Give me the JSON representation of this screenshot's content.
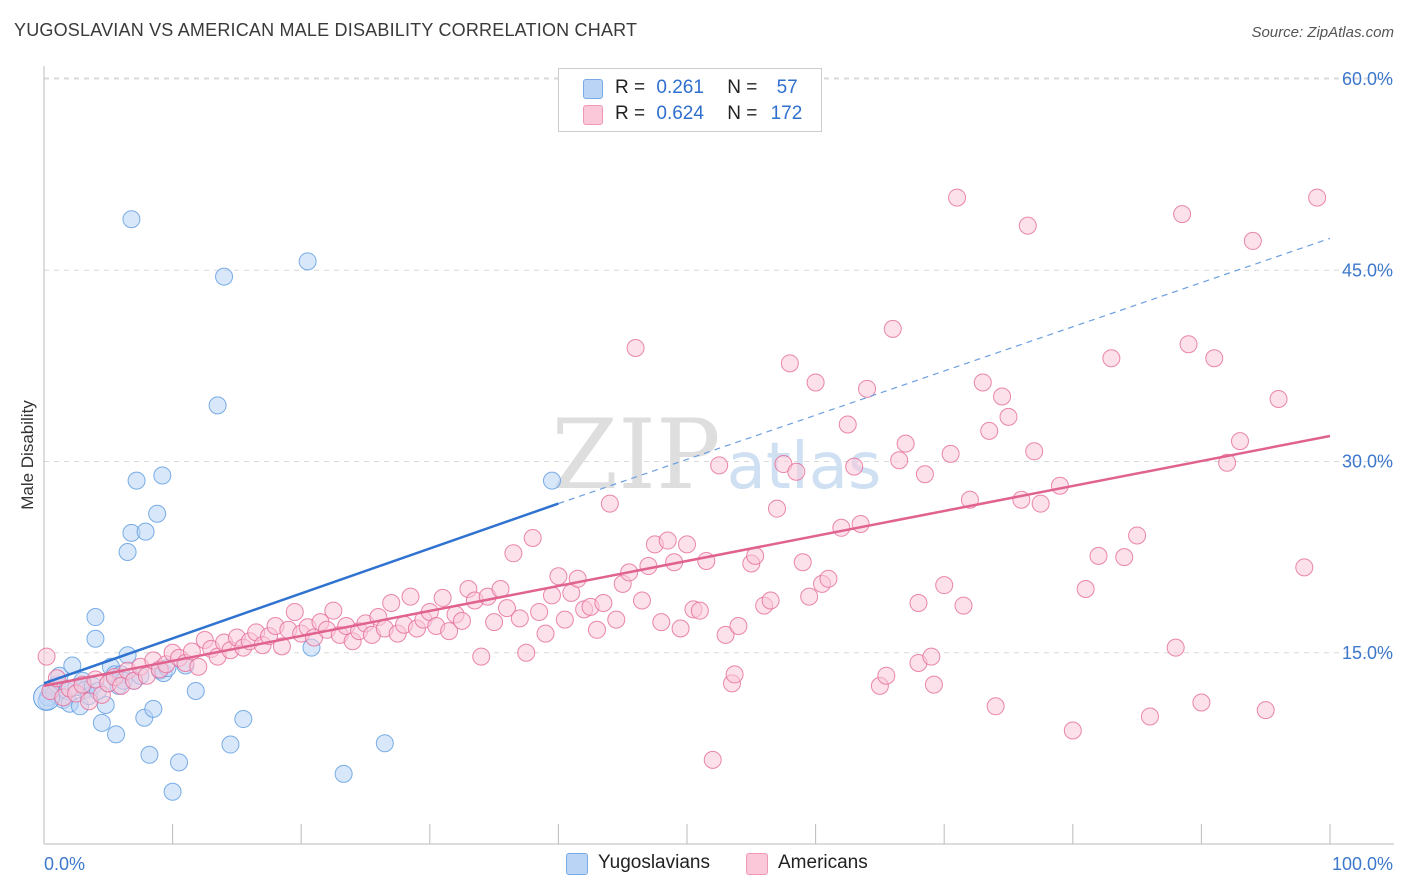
{
  "title": "YUGOSLAVIAN VS AMERICAN MALE DISABILITY CORRELATION CHART",
  "source": "Source: ZipAtlas.com",
  "watermark": {
    "zip": "ZIP",
    "atlas": "atlas"
  },
  "legend": {
    "rows": [
      {
        "r_label": "R =",
        "r_value": "0.261",
        "n_label": "N =",
        "n_value": "57",
        "color": "#a9c9f2"
      },
      {
        "r_label": "R =",
        "r_value": "0.624",
        "n_label": "N =",
        "n_value": "172",
        "color": "#f7b8cd"
      }
    ]
  },
  "bottom_legend": [
    {
      "label": "Yugoslavians",
      "color": "#b9d4f5"
    },
    {
      "label": "Americans",
      "color": "#fac8d8"
    }
  ],
  "chart_data": {
    "type": "scatter",
    "title": "YUGOSLAVIAN VS AMERICAN MALE DISABILITY CORRELATION CHART",
    "xlabel": "",
    "ylabel": "Male Disability",
    "xlim": [
      0,
      100
    ],
    "ylim": [
      0,
      62
    ],
    "x_tick_labels": [
      "0.0%",
      "100.0%"
    ],
    "y_tick_labels": [
      "15.0%",
      "30.0%",
      "45.0%",
      "60.0%"
    ],
    "y_ticks": [
      15,
      30,
      45,
      60
    ],
    "grid": true,
    "legend_position": "top-center",
    "series": [
      {
        "name": "Yugoslavians",
        "color": "#5b9be0",
        "fill": "#b9d4f5",
        "r": 0.261,
        "n": 57,
        "trend": {
          "x0": 0,
          "y0": 12.6,
          "x1": 40,
          "y1": 26.7,
          "dash_to_x": 100,
          "dash_to_y": 47.5
        },
        "points": [
          [
            0.3,
            11.5
          ],
          [
            0.6,
            12.2
          ],
          [
            0.8,
            11.8
          ],
          [
            1.0,
            12.5
          ],
          [
            1.2,
            13.2
          ],
          [
            1.5,
            11.3
          ],
          [
            1.8,
            12.0
          ],
          [
            2.0,
            11.0
          ],
          [
            2.2,
            14.0
          ],
          [
            2.5,
            12.3
          ],
          [
            2.8,
            10.8
          ],
          [
            3.0,
            12.8
          ],
          [
            3.2,
            12.1
          ],
          [
            3.5,
            11.6
          ],
          [
            3.8,
            12.4
          ],
          [
            4.0,
            16.1
          ],
          [
            4.0,
            17.8
          ],
          [
            4.2,
            12.0
          ],
          [
            4.5,
            9.5
          ],
          [
            4.8,
            10.9
          ],
          [
            5.0,
            12.6
          ],
          [
            5.2,
            13.9
          ],
          [
            5.5,
            13.3
          ],
          [
            5.6,
            8.6
          ],
          [
            5.8,
            12.4
          ],
          [
            6.0,
            13.3
          ],
          [
            6.2,
            12.8
          ],
          [
            6.5,
            14.8
          ],
          [
            6.8,
            24.4
          ],
          [
            6.5,
            22.9
          ],
          [
            7.0,
            12.8
          ],
          [
            7.2,
            28.5
          ],
          [
            7.5,
            13.2
          ],
          [
            7.8,
            9.9
          ],
          [
            7.9,
            24.5
          ],
          [
            8.2,
            7.0
          ],
          [
            8.5,
            10.6
          ],
          [
            8.8,
            25.9
          ],
          [
            9.0,
            13.6
          ],
          [
            9.3,
            13.4
          ],
          [
            9.2,
            28.9
          ],
          [
            9.6,
            13.8
          ],
          [
            10.0,
            4.1
          ],
          [
            10.5,
            6.4
          ],
          [
            11.0,
            14.0
          ],
          [
            11.8,
            12.0
          ],
          [
            13.5,
            34.4
          ],
          [
            14.0,
            44.5
          ],
          [
            14.5,
            7.8
          ],
          [
            15.5,
            9.8
          ],
          [
            20.5,
            45.7
          ],
          [
            20.8,
            15.4
          ],
          [
            23.3,
            5.5
          ],
          [
            26.5,
            7.9
          ],
          [
            39.5,
            28.5
          ],
          [
            0.2,
            11.2
          ],
          [
            6.8,
            49.0
          ]
        ]
      },
      {
        "name": "Americans",
        "color": "#e56a98",
        "fill": "#fac8d8",
        "r": 0.624,
        "n": 172,
        "trend": {
          "x0": 0,
          "y0": 12.4,
          "x1": 100,
          "y1": 32.0
        },
        "points": [
          [
            0.2,
            14.7
          ],
          [
            0.5,
            12.0
          ],
          [
            1.0,
            13.0
          ],
          [
            1.5,
            11.5
          ],
          [
            2.0,
            12.2
          ],
          [
            2.5,
            11.8
          ],
          [
            3.0,
            12.5
          ],
          [
            3.5,
            11.2
          ],
          [
            4.0,
            12.9
          ],
          [
            4.5,
            11.7
          ],
          [
            5.0,
            12.6
          ],
          [
            5.5,
            13.1
          ],
          [
            6.0,
            12.4
          ],
          [
            6.5,
            13.6
          ],
          [
            7.0,
            12.8
          ],
          [
            7.5,
            13.9
          ],
          [
            8.0,
            13.2
          ],
          [
            8.5,
            14.4
          ],
          [
            9.0,
            13.7
          ],
          [
            9.5,
            14.1
          ],
          [
            10.0,
            15.0
          ],
          [
            10.5,
            14.6
          ],
          [
            11.0,
            14.2
          ],
          [
            11.5,
            15.1
          ],
          [
            12.0,
            13.9
          ],
          [
            12.5,
            16.0
          ],
          [
            13.0,
            15.3
          ],
          [
            13.5,
            14.7
          ],
          [
            14.0,
            15.8
          ],
          [
            14.5,
            15.2
          ],
          [
            15.0,
            16.2
          ],
          [
            15.5,
            15.4
          ],
          [
            16.0,
            15.9
          ],
          [
            16.5,
            16.6
          ],
          [
            17.0,
            15.6
          ],
          [
            17.5,
            16.3
          ],
          [
            18.0,
            17.1
          ],
          [
            18.5,
            15.5
          ],
          [
            19.0,
            16.8
          ],
          [
            19.5,
            18.2
          ],
          [
            20.0,
            16.5
          ],
          [
            20.5,
            17.0
          ],
          [
            21.0,
            16.2
          ],
          [
            21.5,
            17.4
          ],
          [
            22.0,
            16.8
          ],
          [
            22.5,
            18.3
          ],
          [
            23.0,
            16.4
          ],
          [
            23.5,
            17.1
          ],
          [
            24.0,
            15.9
          ],
          [
            24.5,
            16.7
          ],
          [
            25.0,
            17.3
          ],
          [
            25.5,
            16.4
          ],
          [
            26.0,
            17.8
          ],
          [
            26.5,
            16.9
          ],
          [
            27.0,
            18.9
          ],
          [
            27.5,
            16.5
          ],
          [
            28.0,
            17.2
          ],
          [
            28.5,
            19.4
          ],
          [
            29.0,
            16.9
          ],
          [
            29.5,
            17.6
          ],
          [
            30.0,
            18.2
          ],
          [
            30.5,
            17.1
          ],
          [
            31.0,
            19.3
          ],
          [
            31.5,
            16.7
          ],
          [
            32.0,
            18.0
          ],
          [
            32.5,
            17.5
          ],
          [
            33.0,
            20.0
          ],
          [
            33.5,
            19.1
          ],
          [
            34.0,
            14.7
          ],
          [
            34.5,
            19.4
          ],
          [
            35.0,
            17.4
          ],
          [
            35.5,
            20.0
          ],
          [
            36.0,
            18.5
          ],
          [
            36.5,
            22.8
          ],
          [
            37.0,
            17.7
          ],
          [
            37.5,
            15.0
          ],
          [
            38.0,
            24.0
          ],
          [
            38.5,
            18.2
          ],
          [
            39.0,
            16.5
          ],
          [
            39.5,
            19.5
          ],
          [
            40.0,
            21.0
          ],
          [
            40.5,
            17.6
          ],
          [
            41.0,
            19.7
          ],
          [
            41.5,
            20.8
          ],
          [
            42.0,
            18.4
          ],
          [
            42.5,
            18.6
          ],
          [
            43.0,
            16.8
          ],
          [
            43.5,
            18.9
          ],
          [
            44.0,
            26.7
          ],
          [
            44.5,
            17.6
          ],
          [
            45.0,
            20.4
          ],
          [
            45.5,
            21.3
          ],
          [
            46.0,
            38.9
          ],
          [
            46.5,
            19.1
          ],
          [
            47.0,
            21.8
          ],
          [
            47.5,
            23.5
          ],
          [
            48.0,
            17.4
          ],
          [
            48.5,
            23.8
          ],
          [
            49.0,
            22.1
          ],
          [
            49.5,
            16.9
          ],
          [
            50.0,
            23.5
          ],
          [
            50.5,
            18.4
          ],
          [
            51.0,
            18.3
          ],
          [
            51.5,
            22.2
          ],
          [
            52.0,
            6.6
          ],
          [
            52.5,
            29.7
          ],
          [
            53.0,
            16.4
          ],
          [
            53.5,
            12.6
          ],
          [
            53.7,
            13.3
          ],
          [
            54.0,
            17.1
          ],
          [
            55.0,
            22.0
          ],
          [
            55.3,
            22.6
          ],
          [
            56.0,
            18.7
          ],
          [
            56.5,
            19.1
          ],
          [
            57.0,
            26.3
          ],
          [
            57.5,
            29.8
          ],
          [
            58.0,
            37.7
          ],
          [
            58.5,
            29.2
          ],
          [
            59.0,
            22.1
          ],
          [
            59.5,
            19.4
          ],
          [
            60.0,
            36.2
          ],
          [
            60.5,
            20.4
          ],
          [
            61.0,
            20.8
          ],
          [
            62.0,
            24.8
          ],
          [
            62.5,
            32.9
          ],
          [
            63.0,
            29.6
          ],
          [
            63.5,
            25.1
          ],
          [
            64.0,
            35.7
          ],
          [
            65.0,
            12.4
          ],
          [
            65.5,
            13.2
          ],
          [
            66.0,
            40.4
          ],
          [
            66.5,
            30.1
          ],
          [
            67.0,
            31.4
          ],
          [
            68.0,
            14.2
          ],
          [
            68.5,
            29.0
          ],
          [
            69.0,
            14.7
          ],
          [
            69.2,
            12.5
          ],
          [
            70.0,
            20.3
          ],
          [
            70.5,
            30.6
          ],
          [
            71.0,
            50.7
          ],
          [
            71.5,
            18.7
          ],
          [
            72.0,
            27.0
          ],
          [
            73.0,
            36.2
          ],
          [
            73.5,
            32.4
          ],
          [
            74.0,
            10.8
          ],
          [
            74.5,
            35.1
          ],
          [
            75.0,
            33.5
          ],
          [
            76.0,
            27.0
          ],
          [
            76.5,
            48.5
          ],
          [
            77.0,
            30.8
          ],
          [
            77.5,
            26.7
          ],
          [
            79.0,
            28.1
          ],
          [
            80.0,
            8.9
          ],
          [
            81.0,
            20.0
          ],
          [
            82.0,
            22.6
          ],
          [
            83.0,
            38.1
          ],
          [
            84.0,
            22.5
          ],
          [
            85.0,
            24.2
          ],
          [
            86.0,
            10.0
          ],
          [
            88.0,
            15.4
          ],
          [
            89.0,
            39.2
          ],
          [
            90.0,
            11.1
          ],
          [
            91.0,
            38.1
          ],
          [
            92.0,
            29.9
          ],
          [
            93.0,
            31.6
          ],
          [
            94.0,
            47.3
          ],
          [
            95.0,
            10.5
          ],
          [
            96.0,
            34.9
          ],
          [
            98.0,
            21.7
          ],
          [
            99.0,
            50.7
          ],
          [
            68.0,
            18.9
          ],
          [
            88.5,
            49.4
          ]
        ]
      }
    ]
  }
}
